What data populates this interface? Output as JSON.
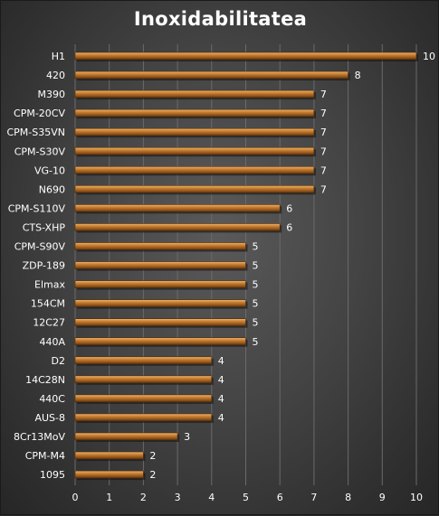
{
  "chart_data": {
    "type": "bar",
    "orientation": "horizontal",
    "title": "Inoxidabilitatea",
    "categories": [
      "H1",
      "420",
      "M390",
      "CPM-20CV",
      "CPM-S35VN",
      "CPM-S30V",
      "VG-10",
      "N690",
      "CPM-S110V",
      "CTS-XHP",
      "CPM-S90V",
      "ZDP-189",
      "Elmax",
      "154CM",
      "12C27",
      "440A",
      "D2",
      "14C28N",
      "440C",
      "AUS-8",
      "8Cr13MoV",
      "CPM-M4",
      "1095"
    ],
    "values": [
      10,
      8,
      7,
      7,
      7,
      7,
      7,
      7,
      6,
      6,
      5,
      5,
      5,
      5,
      5,
      5,
      4,
      4,
      4,
      4,
      3,
      2,
      2
    ],
    "xlim": [
      0,
      10
    ],
    "xticks": [
      0,
      1,
      2,
      3,
      4,
      5,
      6,
      7,
      8,
      9,
      10
    ],
    "grid": true,
    "legend": "none",
    "xlabel": "",
    "ylabel": "",
    "colors": {
      "bar": "#c07a2c",
      "bar_dark": "#6b3c10",
      "bar_light": "#e8a860",
      "text": "#ffffff",
      "grid": "#6a6a6a"
    }
  }
}
